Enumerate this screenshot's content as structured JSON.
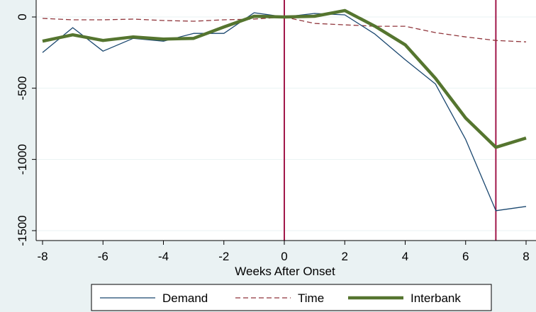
{
  "chart_data": {
    "type": "line",
    "xlabel": "Weeks After Onset",
    "ylabel": "",
    "xlim": [
      -8,
      8
    ],
    "ylim": [
      -1500,
      0
    ],
    "x_ticks": [
      -8,
      -6,
      -4,
      -2,
      0,
      2,
      4,
      6,
      8
    ],
    "x_tick_labels": [
      "-8",
      "-6",
      "-4",
      "-2",
      "0",
      "2",
      "4",
      "6",
      "8"
    ],
    "y_ticks": [
      0,
      -500,
      -1000,
      -1500
    ],
    "y_tick_labels": [
      "0",
      "-500",
      "-1000",
      "-1500"
    ],
    "grid": "horizontal",
    "legend_position": "bottom",
    "vertical_reference_lines": [
      0,
      7
    ],
    "reference_line_color": "#a1184a",
    "x": [
      -8,
      -7,
      -6,
      -5,
      -4,
      -3,
      -2,
      -1,
      0,
      1,
      2,
      3,
      4,
      5,
      6,
      7,
      8
    ],
    "series": [
      {
        "name": "Demand",
        "color": "#1a476f",
        "style": "solid-thin",
        "values": [
          -250,
          -75,
          -240,
          -150,
          -170,
          -115,
          -115,
          30,
          0,
          25,
          15,
          -120,
          -300,
          -470,
          -860,
          -1360,
          -1330
        ]
      },
      {
        "name": "Time",
        "color": "#90353b",
        "style": "dashed",
        "values": [
          -10,
          -20,
          -20,
          -15,
          -25,
          -30,
          -20,
          -15,
          0,
          -45,
          -55,
          -65,
          -65,
          -110,
          -140,
          -165,
          -175
        ]
      },
      {
        "name": "Interbank",
        "color": "#55752f",
        "style": "solid-thick",
        "values": [
          -170,
          -125,
          -165,
          -140,
          -155,
          -150,
          -70,
          5,
          0,
          5,
          45,
          -65,
          -195,
          -430,
          -710,
          -915,
          -850
        ]
      }
    ]
  }
}
